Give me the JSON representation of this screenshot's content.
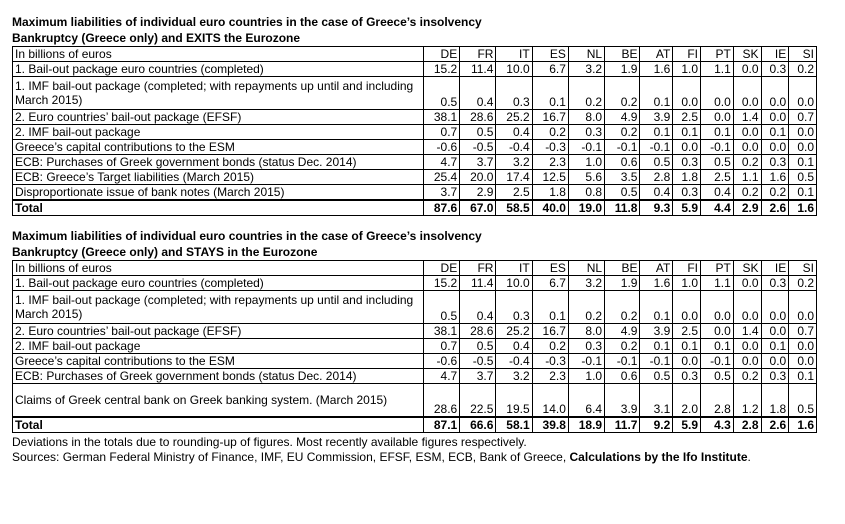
{
  "table1": {
    "title_line1": "Maximum liabilities of individual euro countries in the case of Greece’s insolvency",
    "title_line2": "Bankruptcy (Greece only) and EXITS the Eurozone",
    "header_label": "In billions of euros",
    "columns": [
      "DE",
      "FR",
      "IT",
      "ES",
      "NL",
      "BE",
      "AT",
      "FI",
      "PT",
      "SK",
      "IE",
      "SI"
    ],
    "rows": [
      {
        "label": "1. Bail-out package euro countries (completed)",
        "values": [
          "15.2",
          "11.4",
          "10.0",
          "6.7",
          "3.2",
          "1.9",
          "1.6",
          "1.0",
          "1.1",
          "0.0",
          "0.3",
          "0.2"
        ]
      },
      {
        "label": "1. IMF bail-out package (completed; with repayments up until and including March 2015)",
        "values": [
          "0.5",
          "0.4",
          "0.3",
          "0.1",
          "0.2",
          "0.2",
          "0.1",
          "0.0",
          "0.0",
          "0.0",
          "0.0",
          "0.0"
        ]
      },
      {
        "label": "2. Euro countries’ bail-out package (EFSF)",
        "values": [
          "38.1",
          "28.6",
          "25.2",
          "16.7",
          "8.0",
          "4.9",
          "3.9",
          "2.5",
          "0.0",
          "1.4",
          "0.0",
          "0.7"
        ]
      },
      {
        "label": "2. IMF bail-out package",
        "values": [
          "0.7",
          "0.5",
          "0.4",
          "0.2",
          "0.3",
          "0.2",
          "0.1",
          "0.1",
          "0.1",
          "0.0",
          "0.1",
          "0.0"
        ]
      },
      {
        "label": "Greece’s capital contributions to the ESM",
        "values": [
          "-0.6",
          "-0.5",
          "-0.4",
          "-0.3",
          "-0.1",
          "-0.1",
          "-0.1",
          "0.0",
          "-0.1",
          "0.0",
          "0.0",
          "0.0"
        ]
      },
      {
        "label": "ECB: Purchases of Greek government bonds (status Dec. 2014)",
        "values": [
          "4.7",
          "3.7",
          "3.2",
          "2.3",
          "1.0",
          "0.6",
          "0.5",
          "0.3",
          "0.5",
          "0.2",
          "0.3",
          "0.1"
        ]
      },
      {
        "label": "ECB: Greece’s Target liabilities (March 2015)",
        "values": [
          "25.4",
          "20.0",
          "17.4",
          "12.5",
          "5.6",
          "3.5",
          "2.8",
          "1.8",
          "2.5",
          "1.1",
          "1.6",
          "0.5"
        ]
      },
      {
        "label": "Disproportionate issue of bank notes (March 2015)",
        "values": [
          "3.7",
          "2.9",
          "2.5",
          "1.8",
          "0.8",
          "0.5",
          "0.4",
          "0.3",
          "0.4",
          "0.2",
          "0.2",
          "0.1"
        ]
      }
    ],
    "total": {
      "label": "Total",
      "values": [
        "87.6",
        "67.0",
        "58.5",
        "40.0",
        "19.0",
        "11.8",
        "9.3",
        "5.9",
        "4.4",
        "2.9",
        "2.6",
        "1.6"
      ]
    }
  },
  "table2": {
    "title_line1": "Maximum liabilities of individual euro countries in the case of Greece’s insolvency",
    "title_line2": "Bankruptcy (Greece only) and STAYS in the Eurozone",
    "header_label": "In billions of euros",
    "columns": [
      "DE",
      "FR",
      "IT",
      "ES",
      "NL",
      "BE",
      "AT",
      "FI",
      "PT",
      "SK",
      "IE",
      "SI"
    ],
    "rows": [
      {
        "label": "1. Bail-out package euro countries (completed)",
        "values": [
          "15.2",
          "11.4",
          "10.0",
          "6.7",
          "3.2",
          "1.9",
          "1.6",
          "1.0",
          "1.1",
          "0.0",
          "0.3",
          "0.2"
        ]
      },
      {
        "label": "1. IMF bail-out package (completed; with repayments up until and including March 2015)",
        "values": [
          "0.5",
          "0.4",
          "0.3",
          "0.1",
          "0.2",
          "0.2",
          "0.1",
          "0.0",
          "0.0",
          "0.0",
          "0.0",
          "0.0"
        ]
      },
      {
        "label": "2. Euro countries’ bail-out package (EFSF)",
        "values": [
          "38.1",
          "28.6",
          "25.2",
          "16.7",
          "8.0",
          "4.9",
          "3.9",
          "2.5",
          "0.0",
          "1.4",
          "0.0",
          "0.7"
        ]
      },
      {
        "label": "2. IMF bail-out package",
        "values": [
          "0.7",
          "0.5",
          "0.4",
          "0.2",
          "0.3",
          "0.2",
          "0.1",
          "0.1",
          "0.1",
          "0.0",
          "0.1",
          "0.0"
        ]
      },
      {
        "label": "Greece’s capital contributions to the ESM",
        "values": [
          "-0.6",
          "-0.5",
          "-0.4",
          "-0.3",
          "-0.1",
          "-0.1",
          "-0.1",
          "0.0",
          "-0.1",
          "0.0",
          "0.0",
          "0.0"
        ]
      },
      {
        "label": "ECB: Purchases of Greek government bonds (status Dec. 2014)",
        "values": [
          "4.7",
          "3.7",
          "3.2",
          "2.3",
          "1.0",
          "0.6",
          "0.5",
          "0.3",
          "0.5",
          "0.2",
          "0.3",
          "0.1"
        ]
      },
      {
        "label": "Claims of Greek central bank on Greek banking system. (March 2015)",
        "values": [
          "28.6",
          "22.5",
          "19.5",
          "14.0",
          "6.4",
          "3.9",
          "3.1",
          "2.0",
          "2.8",
          "1.2",
          "1.8",
          "0.5"
        ]
      }
    ],
    "total": {
      "label": "Total",
      "values": [
        "87.1",
        "66.6",
        "58.1",
        "39.8",
        "18.9",
        "11.7",
        "9.2",
        "5.9",
        "4.3",
        "2.8",
        "2.6",
        "1.6"
      ]
    }
  },
  "notes": {
    "line1": "Deviations in the totals due to rounding-up of figures. Most recently available figures respectively.",
    "line2_plain": "Sources: German Federal Ministry of Finance, IMF, EU Commission, EFSF, ESM, ECB, Bank of Greece, ",
    "line2_bold": "Calculations by the Ifo Institute",
    "line2_end": "."
  }
}
